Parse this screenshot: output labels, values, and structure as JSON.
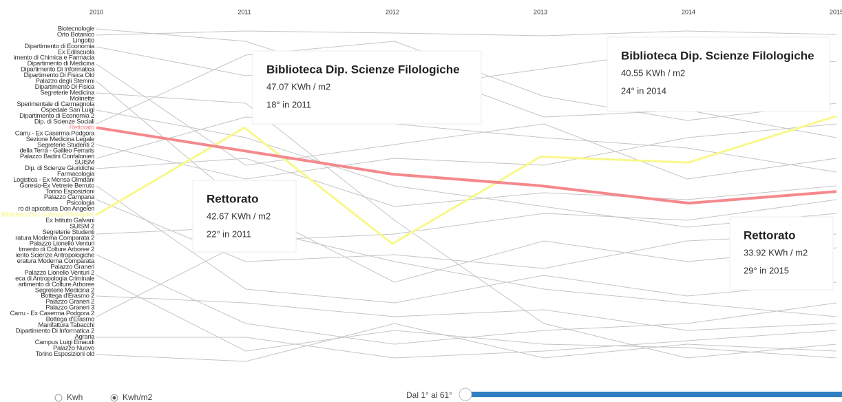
{
  "chart_data": {
    "type": "line",
    "categories": [
      "2010",
      "2011",
      "2012",
      "2013",
      "2014",
      "2015"
    ],
    "ylim": [
      1,
      58
    ],
    "y_labels": [
      "Biotecnologie",
      "Orto Botanico",
      "Lingotto",
      "Dipartimento di Economia",
      "Ex Edilscuola",
      "imento di Chimica e Farmacia",
      "Dipartimento di Medicina",
      "Dipartimento Di Informatica",
      "Dipartimento Di Fisica Old",
      "Palazzo degli Stemmi",
      "Dipartimento Di Fisica",
      "Segreterie Medicina",
      "Molinette",
      "Sperimentale di Carmagnola",
      "Ospedale San Luigi",
      "Dipartimento di Economia 2",
      "Dip. di Scienze Sociali",
      "Rettorato",
      "Carru - Ex Caserma Podgora",
      "Sezione Medicina Legale",
      "Segreterie Studenti 2",
      "della Terra - Galileo Ferraris",
      "Palazzo Badini Confalonieri",
      "SUISM",
      "Dip. di Scienze Giuridiche",
      "Farmacologia",
      "Logistica - Ex Mensa Olmdani",
      "Goresio-Ex Vetrerie Berruto",
      "Torino Esposizioni",
      "Palazzo Campana",
      "Psicologia",
      "ro di apicoltura Don Angeleri",
      "Biblioteca Dip. Scienze Filologiche",
      "Ex Istituto Galvani",
      "SUISM 2",
      "Segreterie Studenti",
      "ratura Moderna Comparata 2",
      "Palazzo Lionello Venturi",
      "timento di Colture Arboree 2",
      "iento Scienze Antropologiche",
      "eratura Moderna Comparata",
      "Palazzo Graneri",
      "Palazzo Lionello Venturi 2",
      "eca di Antropologia Criminale",
      "artimento di Colture Arboree",
      "Segreterie Medicina 2",
      "Bottega d'Erasmo 2",
      "Palazzo Graneri 2",
      "Palazzo Graneri 3",
      "Carru - Ex Caserma Podgora 2",
      "Bottega d'Erasmo",
      "Manifattura Tabacchi",
      "Dipartimento Di Informatica 2",
      "Agraria",
      "Campus Luigi Einaudi",
      "Palazzo Nuovo",
      "Torino Esposizioni old"
    ],
    "series": [
      {
        "name": "Rettorato",
        "color": "#f4898d",
        "values": [
          18,
          22,
          26,
          28,
          31,
          29
        ]
      },
      {
        "name": "Biblioteca Dip. Scienze Filologiche",
        "color": "#f8f88a",
        "values": [
          33,
          18,
          38,
          23,
          24,
          16
        ]
      }
    ],
    "annotations": [
      {
        "title": "Biblioteca Dip. Scienze Filologiche",
        "value_label": "47.07 KWh / m2",
        "rank_label": "18° in 2011"
      },
      {
        "title": "Biblioteca Dip. Scienze Filologiche",
        "value_label": "40.55 KWh / m2",
        "rank_label": "24° in 2014"
      },
      {
        "title": "Rettorato",
        "value_label": "42.67 KWh / m2",
        "rank_label": "22° in 2011"
      },
      {
        "title": "Rettorato",
        "value_label": "33.92 KWh / m2",
        "rank_label": "29° in 2015"
      }
    ],
    "controls": {
      "units": [
        "Kwh",
        "Kwh/m2"
      ],
      "selected": 1,
      "range_label": "Dal 1° al 61°"
    }
  }
}
